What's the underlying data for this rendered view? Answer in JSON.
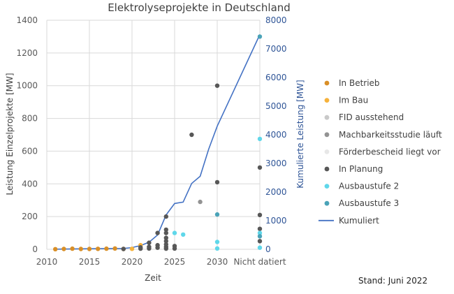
{
  "footnote": "Stand: Juni 2022",
  "chart_data": {
    "type": "scatter",
    "title": "Elektrolyseprojekte in Deutschland",
    "xlabel": "Zeit",
    "ylabel": "Leistung Einzelprojekte [MW]",
    "y2label": "Kumulierte Leistung [MW]",
    "x_ticks": [
      "2010",
      "2015",
      "2020",
      "2025",
      "2030",
      "Nicht datiert"
    ],
    "y_ticks": [
      "0",
      "200",
      "400",
      "600",
      "800",
      "1000",
      "1200",
      "1400"
    ],
    "y2_ticks": [
      "0",
      "1000",
      "2000",
      "3000",
      "4000",
      "5000",
      "6000",
      "7000",
      "8000"
    ],
    "xlim": [
      2010,
      2035
    ],
    "ylim": [
      0,
      1400
    ],
    "y2lim": [
      0,
      8000
    ],
    "grid": true,
    "legend_position": "right",
    "series": [
      {
        "name": "In Betrieb",
        "kind": "scatter",
        "axis": "left",
        "color": "#d98f27",
        "points": [
          [
            2011,
            1
          ],
          [
            2012,
            2
          ],
          [
            2013,
            4
          ],
          [
            2014,
            2
          ],
          [
            2015,
            2
          ],
          [
            2016,
            3
          ],
          [
            2017,
            4
          ],
          [
            2018,
            5
          ],
          [
            2019,
            2
          ]
        ]
      },
      {
        "name": "Im Bau",
        "kind": "scatter",
        "axis": "left",
        "color": "#f6b23b",
        "points": [
          [
            2020,
            3
          ],
          [
            2021,
            25
          ]
        ]
      },
      {
        "name": "FID ausstehend",
        "kind": "scatter",
        "axis": "left",
        "color": "#c9c9c9",
        "points": [
          [
            2024,
            2
          ]
        ]
      },
      {
        "name": "Machbarkeitsstudie läuft",
        "kind": "scatter",
        "axis": "left",
        "color": "#939393",
        "points": [
          [
            2028,
            290
          ]
        ]
      },
      {
        "name": "Förderbescheid liegt vor",
        "kind": "scatter",
        "axis": "left",
        "color": "#e7e7e7",
        "points": [
          [
            2025,
            3
          ]
        ]
      },
      {
        "name": "In Planung",
        "kind": "scatter",
        "axis": "left",
        "color": "#575757",
        "points": [
          [
            2019,
            2
          ],
          [
            2021,
            4
          ],
          [
            2021,
            12
          ],
          [
            2022,
            5
          ],
          [
            2022,
            15
          ],
          [
            2022,
            40
          ],
          [
            2023,
            10
          ],
          [
            2023,
            25
          ],
          [
            2023,
            100
          ],
          [
            2024,
            5
          ],
          [
            2024,
            15
          ],
          [
            2024,
            30
          ],
          [
            2024,
            50
          ],
          [
            2024,
            70
          ],
          [
            2024,
            100
          ],
          [
            2024,
            120
          ],
          [
            2024,
            200
          ],
          [
            2025,
            5
          ],
          [
            2025,
            20
          ],
          [
            2027,
            700
          ],
          [
            2030,
            410
          ],
          [
            2030,
            1000
          ],
          [
            2035,
            500
          ],
          [
            2035,
            210
          ],
          [
            2035,
            125
          ],
          [
            2035,
            50
          ]
        ]
      },
      {
        "name": "Ausbaustufe 2",
        "kind": "scatter",
        "axis": "left",
        "color": "#5fd7ea",
        "points": [
          [
            2025,
            100
          ],
          [
            2026,
            90
          ],
          [
            2030,
            45
          ],
          [
            2030,
            5
          ],
          [
            2035,
            675
          ],
          [
            2035,
            100
          ],
          [
            2035,
            10
          ]
        ]
      },
      {
        "name": "Ausbaustufe 3",
        "kind": "scatter",
        "axis": "left",
        "color": "#4aa3b8",
        "points": [
          [
            2030,
            213
          ],
          [
            2035,
            1300
          ],
          [
            2035,
            80
          ]
        ]
      },
      {
        "name": "Kumuliert",
        "kind": "line",
        "axis": "right",
        "color": "#4472c4",
        "points": [
          [
            2011,
            5
          ],
          [
            2015,
            20
          ],
          [
            2019,
            30
          ],
          [
            2020,
            60
          ],
          [
            2021,
            130
          ],
          [
            2022,
            250
          ],
          [
            2023,
            500
          ],
          [
            2024,
            1200
          ],
          [
            2025,
            1600
          ],
          [
            2026,
            1650
          ],
          [
            2027,
            2300
          ],
          [
            2028,
            2550
          ],
          [
            2029,
            3500
          ],
          [
            2030,
            4300
          ],
          [
            2035,
            7500
          ]
        ]
      }
    ]
  }
}
